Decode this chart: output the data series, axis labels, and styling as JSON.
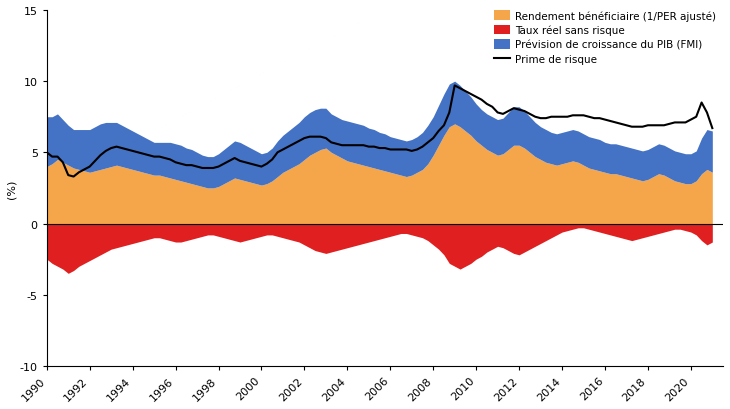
{
  "ylabel": "(%)",
  "xlim": [
    1990,
    2021.5
  ],
  "ylim": [
    -10,
    15
  ],
  "yticks": [
    -10,
    -5,
    0,
    5,
    10,
    15
  ],
  "xtick_years": [
    1990,
    1992,
    1994,
    1996,
    1998,
    2000,
    2002,
    2004,
    2006,
    2008,
    2010,
    2012,
    2014,
    2016,
    2018,
    2020
  ],
  "legend_labels": [
    "Rendement bénéficiaire (1/PER ajusté)",
    "Taux réel sans risque",
    "Prévision de croissance du PIB (FMI)",
    "Prime de risque"
  ],
  "colors": {
    "orange": "#F5A54A",
    "red": "#E02020",
    "blue": "#4472C4",
    "black": "#000000"
  },
  "dates": [
    1990.0,
    1990.25,
    1990.5,
    1990.75,
    1991.0,
    1991.25,
    1991.5,
    1991.75,
    1992.0,
    1992.25,
    1992.5,
    1992.75,
    1993.0,
    1993.25,
    1993.5,
    1993.75,
    1994.0,
    1994.25,
    1994.5,
    1994.75,
    1995.0,
    1995.25,
    1995.5,
    1995.75,
    1996.0,
    1996.25,
    1996.5,
    1996.75,
    1997.0,
    1997.25,
    1997.5,
    1997.75,
    1998.0,
    1998.25,
    1998.5,
    1998.75,
    1999.0,
    1999.25,
    1999.5,
    1999.75,
    2000.0,
    2000.25,
    2000.5,
    2000.75,
    2001.0,
    2001.25,
    2001.5,
    2001.75,
    2002.0,
    2002.25,
    2002.5,
    2002.75,
    2003.0,
    2003.25,
    2003.5,
    2003.75,
    2004.0,
    2004.25,
    2004.5,
    2004.75,
    2005.0,
    2005.25,
    2005.5,
    2005.75,
    2006.0,
    2006.25,
    2006.5,
    2006.75,
    2007.0,
    2007.25,
    2007.5,
    2007.75,
    2008.0,
    2008.25,
    2008.5,
    2008.75,
    2009.0,
    2009.25,
    2009.5,
    2009.75,
    2010.0,
    2010.25,
    2010.5,
    2010.75,
    2011.0,
    2011.25,
    2011.5,
    2011.75,
    2012.0,
    2012.25,
    2012.5,
    2012.75,
    2013.0,
    2013.25,
    2013.5,
    2013.75,
    2014.0,
    2014.25,
    2014.5,
    2014.75,
    2015.0,
    2015.25,
    2015.5,
    2015.75,
    2016.0,
    2016.25,
    2016.5,
    2016.75,
    2017.0,
    2017.25,
    2017.5,
    2017.75,
    2018.0,
    2018.25,
    2018.5,
    2018.75,
    2019.0,
    2019.25,
    2019.5,
    2019.75,
    2020.0,
    2020.25,
    2020.5,
    2020.75,
    2021.0
  ],
  "earnings_yield": [
    4.0,
    4.2,
    4.5,
    4.3,
    4.1,
    3.9,
    3.8,
    3.7,
    3.6,
    3.7,
    3.8,
    3.9,
    4.0,
    4.1,
    4.0,
    3.9,
    3.8,
    3.7,
    3.6,
    3.5,
    3.4,
    3.4,
    3.3,
    3.2,
    3.1,
    3.0,
    2.9,
    2.8,
    2.7,
    2.6,
    2.5,
    2.5,
    2.6,
    2.8,
    3.0,
    3.2,
    3.1,
    3.0,
    2.9,
    2.8,
    2.7,
    2.8,
    3.0,
    3.3,
    3.6,
    3.8,
    4.0,
    4.2,
    4.5,
    4.8,
    5.0,
    5.2,
    5.3,
    5.0,
    4.8,
    4.6,
    4.4,
    4.3,
    4.2,
    4.1,
    4.0,
    3.9,
    3.8,
    3.7,
    3.6,
    3.5,
    3.4,
    3.3,
    3.4,
    3.6,
    3.8,
    4.2,
    4.8,
    5.5,
    6.2,
    6.8,
    7.0,
    6.8,
    6.5,
    6.2,
    5.8,
    5.5,
    5.2,
    5.0,
    4.8,
    4.9,
    5.2,
    5.5,
    5.5,
    5.3,
    5.0,
    4.7,
    4.5,
    4.3,
    4.2,
    4.1,
    4.2,
    4.3,
    4.4,
    4.3,
    4.1,
    3.9,
    3.8,
    3.7,
    3.6,
    3.5,
    3.5,
    3.4,
    3.3,
    3.2,
    3.1,
    3.0,
    3.1,
    3.3,
    3.5,
    3.4,
    3.2,
    3.0,
    2.9,
    2.8,
    2.8,
    3.0,
    3.5,
    3.8,
    3.6
  ],
  "real_rate": [
    -2.5,
    -2.8,
    -3.0,
    -3.2,
    -3.5,
    -3.3,
    -3.0,
    -2.8,
    -2.6,
    -2.4,
    -2.2,
    -2.0,
    -1.8,
    -1.7,
    -1.6,
    -1.5,
    -1.4,
    -1.3,
    -1.2,
    -1.1,
    -1.0,
    -1.0,
    -1.1,
    -1.2,
    -1.3,
    -1.3,
    -1.2,
    -1.1,
    -1.0,
    -0.9,
    -0.8,
    -0.8,
    -0.9,
    -1.0,
    -1.1,
    -1.2,
    -1.3,
    -1.2,
    -1.1,
    -1.0,
    -0.9,
    -0.8,
    -0.8,
    -0.9,
    -1.0,
    -1.1,
    -1.2,
    -1.3,
    -1.5,
    -1.7,
    -1.9,
    -2.0,
    -2.1,
    -2.0,
    -1.9,
    -1.8,
    -1.7,
    -1.6,
    -1.5,
    -1.4,
    -1.3,
    -1.2,
    -1.1,
    -1.0,
    -0.9,
    -0.8,
    -0.7,
    -0.7,
    -0.8,
    -0.9,
    -1.0,
    -1.2,
    -1.5,
    -1.8,
    -2.2,
    -2.8,
    -3.0,
    -3.2,
    -3.0,
    -2.8,
    -2.5,
    -2.3,
    -2.0,
    -1.8,
    -1.6,
    -1.7,
    -1.9,
    -2.1,
    -2.2,
    -2.0,
    -1.8,
    -1.6,
    -1.4,
    -1.2,
    -1.0,
    -0.8,
    -0.6,
    -0.5,
    -0.4,
    -0.3,
    -0.3,
    -0.4,
    -0.5,
    -0.6,
    -0.7,
    -0.8,
    -0.9,
    -1.0,
    -1.1,
    -1.2,
    -1.1,
    -1.0,
    -0.9,
    -0.8,
    -0.7,
    -0.6,
    -0.5,
    -0.4,
    -0.4,
    -0.5,
    -0.6,
    -0.8,
    -1.2,
    -1.5,
    -1.3
  ],
  "gdp_growth_forecast": [
    3.5,
    3.3,
    3.2,
    3.0,
    2.8,
    2.7,
    2.8,
    2.9,
    3.0,
    3.1,
    3.2,
    3.2,
    3.1,
    3.0,
    2.9,
    2.8,
    2.7,
    2.6,
    2.5,
    2.4,
    2.3,
    2.3,
    2.4,
    2.5,
    2.5,
    2.5,
    2.4,
    2.4,
    2.3,
    2.2,
    2.2,
    2.2,
    2.3,
    2.4,
    2.5,
    2.6,
    2.6,
    2.5,
    2.4,
    2.3,
    2.2,
    2.2,
    2.3,
    2.5,
    2.6,
    2.7,
    2.8,
    2.9,
    3.0,
    3.0,
    3.0,
    2.9,
    2.8,
    2.7,
    2.7,
    2.7,
    2.8,
    2.8,
    2.8,
    2.8,
    2.7,
    2.7,
    2.6,
    2.6,
    2.5,
    2.5,
    2.5,
    2.5,
    2.5,
    2.5,
    2.6,
    2.7,
    2.7,
    2.8,
    2.9,
    3.0,
    3.0,
    2.9,
    2.8,
    2.7,
    2.6,
    2.5,
    2.5,
    2.5,
    2.5,
    2.5,
    2.6,
    2.7,
    2.7,
    2.6,
    2.5,
    2.4,
    2.3,
    2.3,
    2.2,
    2.2,
    2.2,
    2.2,
    2.2,
    2.2,
    2.2,
    2.2,
    2.2,
    2.2,
    2.1,
    2.1,
    2.1,
    2.1,
    2.1,
    2.1,
    2.1,
    2.1,
    2.1,
    2.1,
    2.1,
    2.1,
    2.1,
    2.1,
    2.1,
    2.1,
    2.1,
    2.1,
    2.5,
    2.8,
    2.9
  ],
  "risk_premium": [
    5.0,
    4.7,
    4.7,
    4.3,
    3.4,
    3.3,
    3.6,
    3.8,
    4.0,
    4.4,
    4.8,
    5.1,
    5.3,
    5.4,
    5.3,
    5.2,
    5.1,
    5.0,
    4.9,
    4.8,
    4.7,
    4.7,
    4.6,
    4.5,
    4.3,
    4.2,
    4.1,
    4.1,
    4.0,
    3.9,
    3.9,
    3.9,
    4.0,
    4.2,
    4.4,
    4.6,
    4.4,
    4.3,
    4.2,
    4.1,
    4.0,
    4.2,
    4.5,
    5.0,
    5.2,
    5.4,
    5.6,
    5.8,
    6.0,
    6.1,
    6.1,
    6.1,
    6.0,
    5.7,
    5.6,
    5.5,
    5.5,
    5.5,
    5.5,
    5.5,
    5.4,
    5.4,
    5.3,
    5.3,
    5.2,
    5.2,
    5.2,
    5.2,
    5.1,
    5.2,
    5.4,
    5.7,
    6.0,
    6.5,
    6.9,
    7.8,
    9.7,
    9.5,
    9.3,
    9.1,
    8.9,
    8.7,
    8.4,
    8.2,
    7.8,
    7.7,
    7.9,
    8.1,
    8.0,
    7.9,
    7.7,
    7.5,
    7.4,
    7.4,
    7.5,
    7.5,
    7.5,
    7.5,
    7.6,
    7.6,
    7.6,
    7.5,
    7.4,
    7.4,
    7.3,
    7.2,
    7.1,
    7.0,
    6.9,
    6.8,
    6.8,
    6.8,
    6.9,
    6.9,
    6.9,
    6.9,
    7.0,
    7.1,
    7.1,
    7.1,
    7.3,
    7.5,
    8.5,
    7.8,
    6.7
  ]
}
